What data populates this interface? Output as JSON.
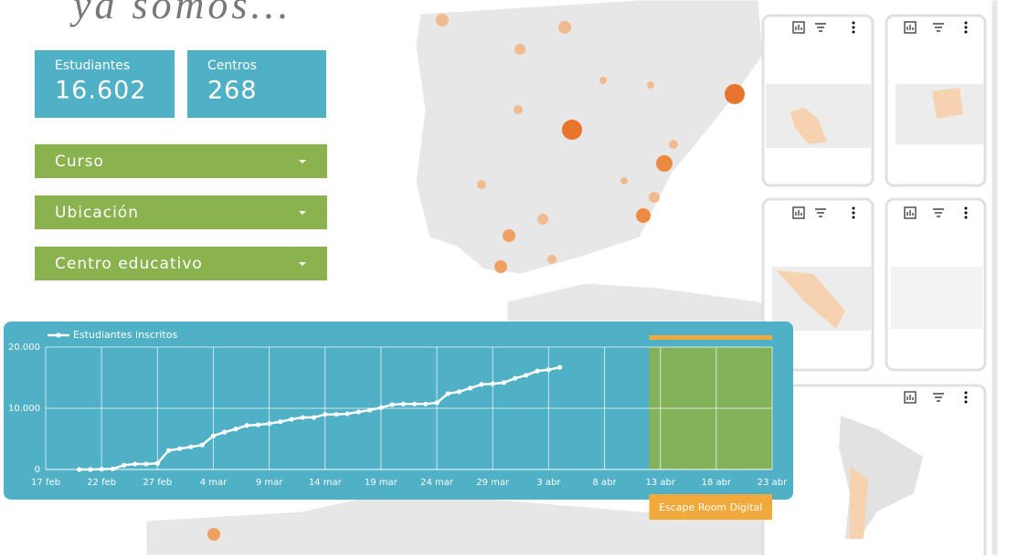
{
  "header": {
    "title": "ya somos..."
  },
  "kpis": [
    {
      "label": "Estudiantes",
      "value": "16.602"
    },
    {
      "label": "Centros",
      "value": "268"
    }
  ],
  "filters": [
    "Curso",
    "Ubicación",
    "Centro educativo"
  ],
  "chart_data": {
    "type": "line",
    "x": [
      3,
      4,
      5,
      6,
      7,
      8,
      9,
      10,
      11,
      12,
      13,
      14,
      15,
      16,
      17,
      18,
      19,
      20,
      21,
      22,
      23,
      24,
      25,
      26,
      27,
      28,
      29,
      30,
      31,
      32,
      33,
      34,
      35,
      36,
      37,
      38,
      39,
      40,
      41,
      42,
      43,
      44,
      45,
      46
    ],
    "series": [
      {
        "name": "Estudiantes inscritos",
        "color": "#ffffff",
        "values": [
          0,
          0,
          50,
          100,
          700,
          900,
          900,
          1000,
          3100,
          3400,
          3700,
          4000,
          5500,
          6100,
          6600,
          7200,
          7300,
          7500,
          7800,
          8200,
          8500,
          8500,
          9000,
          9000,
          9100,
          9400,
          9700,
          10100,
          10600,
          10700,
          10700,
          10700,
          10900,
          12400,
          12700,
          13300,
          13900,
          14000,
          14200,
          14900,
          15400,
          16100,
          16300,
          16700
        ]
      }
    ],
    "xlim": [
      0,
      65
    ],
    "xticks": [
      {
        "value": 0,
        "label": "17 feb"
      },
      {
        "value": 5,
        "label": "22 feb"
      },
      {
        "value": 10,
        "label": "27 feb"
      },
      {
        "value": 15,
        "label": "4 mar"
      },
      {
        "value": 20,
        "label": "9 mar"
      },
      {
        "value": 25,
        "label": "14 mar"
      },
      {
        "value": 30,
        "label": "19 mar"
      },
      {
        "value": 35,
        "label": "24 mar"
      },
      {
        "value": 40,
        "label": "29 mar"
      },
      {
        "value": 45,
        "label": "3 abr"
      },
      {
        "value": 50,
        "label": "8 abr"
      },
      {
        "value": 55,
        "label": "13 abr"
      },
      {
        "value": 60,
        "label": "18 abr"
      },
      {
        "value": 65,
        "label": "23 abr"
      }
    ],
    "ylim": [
      0,
      20000
    ],
    "yticks": [
      0,
      {
        "value": 10000,
        "label": "10.000"
      },
      {
        "value": 20000,
        "label": "20.000"
      }
    ],
    "grid": true,
    "annotations": [
      {
        "label": "Escape Room Digital",
        "start": 54,
        "end": 65,
        "color": "#f2a93b"
      }
    ]
  }
}
